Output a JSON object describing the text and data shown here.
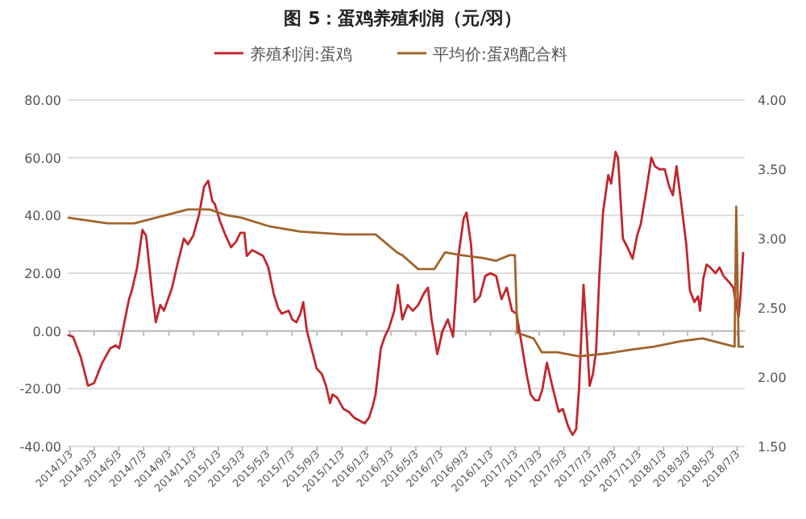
{
  "chart_data": {
    "type": "line",
    "title": "图 5：蛋鸡养殖利润（元/羽）",
    "legend": "top",
    "grid": "y",
    "line_style": "solid",
    "marker": "none",
    "xlim": [
      "2013-12-28",
      "2018-07-22"
    ],
    "xticks": [
      {
        "value": "2014-01-03",
        "label": "2014/1/3"
      },
      {
        "value": "2014-03-03",
        "label": "2014/3/3"
      },
      {
        "value": "2014-05-03",
        "label": "2014/5/3"
      },
      {
        "value": "2014-07-03",
        "label": "2014/7/3"
      },
      {
        "value": "2014-09-03",
        "label": "2014/9/3"
      },
      {
        "value": "2014-11-03",
        "label": "2014/11/3"
      },
      {
        "value": "2015-01-03",
        "label": "2015/1/3"
      },
      {
        "value": "2015-03-03",
        "label": "2015/3/3"
      },
      {
        "value": "2015-05-03",
        "label": "2015/5/3"
      },
      {
        "value": "2015-07-03",
        "label": "2015/7/3"
      },
      {
        "value": "2015-09-03",
        "label": "2015/9/3"
      },
      {
        "value": "2015-11-03",
        "label": "2015/11/3"
      },
      {
        "value": "2016-01-03",
        "label": "2016/1/3"
      },
      {
        "value": "2016-03-03",
        "label": "2016/3/3"
      },
      {
        "value": "2016-05-03",
        "label": "2016/5/3"
      },
      {
        "value": "2016-07-03",
        "label": "2016/7/3"
      },
      {
        "value": "2016-09-03",
        "label": "2016/9/3"
      },
      {
        "value": "2016-11-03",
        "label": "2016/11/3"
      },
      {
        "value": "2017-01-03",
        "label": "2017/1/3"
      },
      {
        "value": "2017-03-03",
        "label": "2017/3/3"
      },
      {
        "value": "2017-05-03",
        "label": "2017/5/3"
      },
      {
        "value": "2017-07-03",
        "label": "2017/7/3"
      },
      {
        "value": "2017-09-03",
        "label": "2017/9/3"
      },
      {
        "value": "2017-11-03",
        "label": "2017/11/3"
      },
      {
        "value": "2018-01-03",
        "label": "2018/1/3"
      },
      {
        "value": "2018-03-03",
        "label": "2018/3/3"
      },
      {
        "value": "2018-05-03",
        "label": "2018/5/3"
      },
      {
        "value": "2018-07-03",
        "label": "2018/7/3"
      }
    ],
    "ylim": [
      -40,
      80
    ],
    "yticks": [
      {
        "value": -40,
        "label": "-40.00"
      },
      {
        "value": -20,
        "label": "-20.00"
      },
      {
        "value": 0,
        "label": "0.00"
      },
      {
        "value": 20,
        "label": "20.00"
      },
      {
        "value": 40,
        "label": "40.00"
      },
      {
        "value": 60,
        "label": "60.00"
      },
      {
        "value": 80,
        "label": "80.00"
      }
    ],
    "y2lim": [
      1.5,
      4
    ],
    "y2ticks": [
      {
        "value": 1.5,
        "label": "1.50"
      },
      {
        "value": 2,
        "label": "2.00"
      },
      {
        "value": 2.5,
        "label": "2.50"
      },
      {
        "value": 3,
        "label": "3.00"
      },
      {
        "value": 3.5,
        "label": "3.50"
      },
      {
        "value": 4,
        "label": "4.00"
      }
    ],
    "series": [
      {
        "name": "养殖利润:蛋鸡",
        "color": "#c0272d",
        "x": [
          "2013-12-30",
          "2014-01-10",
          "2014-01-29",
          "2014-02-16",
          "2014-03-03",
          "2014-03-23",
          "2014-04-12",
          "2014-04-25",
          "2014-05-04",
          "2014-05-18",
          "2014-05-28",
          "2014-06-04",
          "2014-06-17",
          "2014-06-30",
          "2014-07-09",
          "2014-07-24",
          "2014-08-02",
          "2014-08-13",
          "2014-08-22",
          "2014-09-11",
          "2014-09-24",
          "2014-10-10",
          "2014-10-20",
          "2014-11-02",
          "2014-11-16",
          "2014-11-29",
          "2014-12-09",
          "2014-12-19",
          "2014-12-25",
          "2015-01-07",
          "2015-01-21",
          "2015-02-03",
          "2015-02-16",
          "2015-02-26",
          "2015-03-08",
          "2015-03-14",
          "2015-03-27",
          "2015-04-10",
          "2015-04-23",
          "2015-05-06",
          "2015-05-19",
          "2015-05-30",
          "2015-06-08",
          "2015-06-25",
          "2015-07-04",
          "2015-07-14",
          "2015-07-24",
          "2015-07-31",
          "2015-08-09",
          "2015-08-20",
          "2015-09-02",
          "2015-09-15",
          "2015-09-25",
          "2015-10-05",
          "2015-10-11",
          "2015-10-22",
          "2015-11-07",
          "2015-11-20",
          "2015-12-03",
          "2015-12-16",
          "2015-12-29",
          "2016-01-09",
          "2016-01-18",
          "2016-01-25",
          "2016-02-07",
          "2016-02-18",
          "2016-02-27",
          "2016-03-11",
          "2016-03-20",
          "2016-03-31",
          "2016-04-13",
          "2016-04-26",
          "2016-05-09",
          "2016-05-23",
          "2016-06-02",
          "2016-06-11",
          "2016-06-25",
          "2016-07-08",
          "2016-07-21",
          "2016-08-03",
          "2016-08-16",
          "2016-08-29",
          "2016-09-05",
          "2016-09-16",
          "2016-09-25",
          "2016-10-08",
          "2016-10-21",
          "2016-11-03",
          "2016-11-17",
          "2016-11-30",
          "2016-12-13",
          "2016-12-26",
          "2017-01-06",
          "2017-01-18",
          "2017-01-31",
          "2017-02-10",
          "2017-02-21",
          "2017-03-02",
          "2017-03-11",
          "2017-03-22",
          "2017-04-04",
          "2017-04-20",
          "2017-04-30",
          "2017-05-13",
          "2017-05-24",
          "2017-06-02",
          "2017-06-09",
          "2017-06-20",
          "2017-06-29",
          "2017-07-05",
          "2017-07-13",
          "2017-07-21",
          "2017-07-29",
          "2017-08-07",
          "2017-08-20",
          "2017-08-27",
          "2017-09-07",
          "2017-09-13",
          "2017-09-25",
          "2017-10-06",
          "2017-10-19",
          "2017-10-30",
          "2017-11-08",
          "2017-11-21",
          "2017-12-04",
          "2017-12-13",
          "2017-12-24",
          "2018-01-06",
          "2018-01-17",
          "2018-01-26",
          "2018-02-04",
          "2018-02-15",
          "2018-02-28",
          "2018-03-09",
          "2018-03-20",
          "2018-03-29",
          "2018-04-03",
          "2018-04-11",
          "2018-04-19",
          "2018-04-28",
          "2018-05-11",
          "2018-05-21",
          "2018-05-31",
          "2018-06-13",
          "2018-06-24",
          "2018-07-01",
          "2018-07-07",
          "2018-07-12",
          "2018-07-18"
        ],
        "values": [
          -1.5,
          -2,
          -9,
          -19,
          -18,
          -11,
          -6,
          -5,
          -6,
          4,
          11,
          14,
          22,
          35,
          33,
          13,
          3,
          9,
          7,
          15,
          23,
          32,
          30,
          33,
          40,
          50,
          52,
          45,
          44,
          38,
          33,
          29,
          31,
          34,
          34,
          26,
          28,
          27,
          26,
          22,
          13,
          8,
          6,
          7,
          4,
          3,
          6,
          10,
          0,
          -6,
          -13,
          -15,
          -19,
          -25,
          -22,
          -23,
          -27,
          -28,
          -30,
          -31,
          -32,
          -30,
          -26,
          -22,
          -6,
          -1.5,
          1,
          7,
          16,
          4,
          9,
          7,
          9,
          13,
          15,
          4,
          -8,
          0,
          4,
          -2,
          26,
          39,
          41,
          30,
          10,
          12,
          19,
          20,
          19,
          11,
          15,
          7,
          6,
          -4,
          -15,
          -22,
          -24,
          -24,
          -20,
          -11,
          -19,
          -28,
          -27,
          -33,
          -36,
          -34,
          -20,
          16,
          -4,
          -19,
          -15,
          -7,
          19,
          41,
          54,
          51,
          62,
          60,
          32,
          29,
          25,
          33,
          37,
          48,
          60,
          57,
          56,
          56,
          50,
          47,
          57,
          45,
          30,
          14,
          10,
          12,
          7,
          18,
          23,
          22,
          20,
          22,
          19,
          17,
          15,
          9,
          5,
          13,
          27
        ]
      },
      {
        "name": "平均价:蛋鸡配合料",
        "color": "#a0642a",
        "axis": "y2",
        "x": [
          "2013-12-30",
          "2014-04-05",
          "2014-06-10",
          "2014-10-20",
          "2014-12-12",
          "2015-01-21",
          "2015-03-01",
          "2015-05-06",
          "2015-07-24",
          "2015-11-07",
          "2016-01-25",
          "2016-03-18",
          "2016-03-31",
          "2016-05-09",
          "2016-06-18",
          "2016-07-14",
          "2016-08-23",
          "2016-10-15",
          "2016-11-17",
          "2016-12-20",
          "2017-01-02",
          "2017-01-08",
          "2017-02-17",
          "2017-03-09",
          "2017-04-17",
          "2017-06-09",
          "2017-08-14",
          "2017-10-19",
          "2017-12-11",
          "2018-02-15",
          "2018-04-09",
          "2018-05-31",
          "2018-06-27",
          "2018-07-01",
          "2018-07-07",
          "2018-07-18"
        ],
        "values": [
          3.15,
          3.11,
          3.11,
          3.21,
          3.21,
          3.17,
          3.15,
          3.09,
          3.05,
          3.03,
          3.03,
          2.9,
          2.88,
          2.78,
          2.78,
          2.9,
          2.88,
          2.86,
          2.84,
          2.88,
          2.88,
          2.32,
          2.28,
          2.18,
          2.18,
          2.15,
          2.17,
          2.2,
          2.22,
          2.26,
          2.28,
          2.24,
          2.22,
          3.23,
          2.22,
          2.22
        ]
      }
    ]
  }
}
